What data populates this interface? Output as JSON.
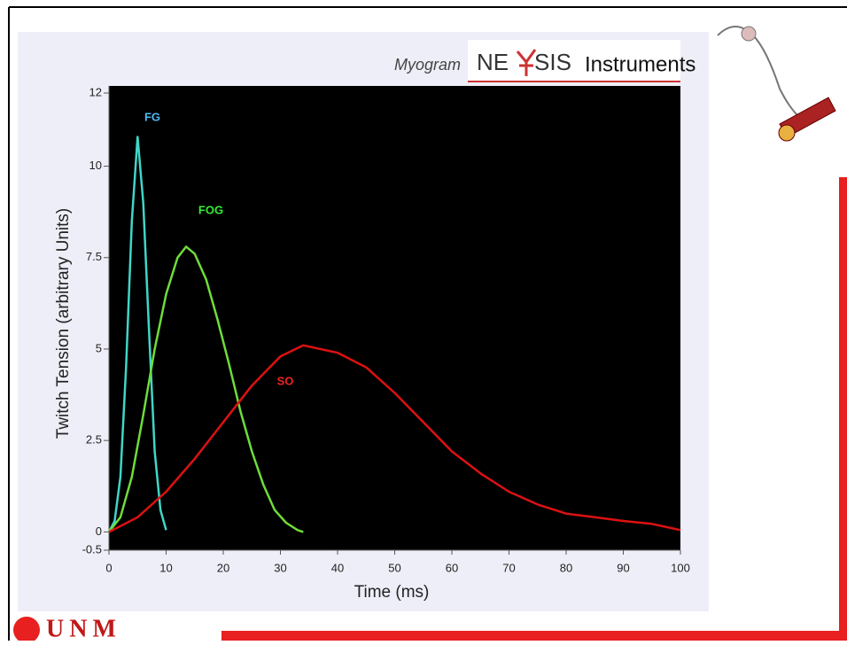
{
  "header": {
    "caption": "Myogram",
    "brand_left": "NE",
    "brand_right": "SIS",
    "brand_suffix": "Instruments"
  },
  "footer": {
    "logo": "UNM"
  },
  "chart_data": {
    "type": "line",
    "x_label": "Time (ms)",
    "y_label": "Twitch Tension (arbitrary Units)",
    "xlim": [
      0,
      100
    ],
    "xticks": [
      0,
      10,
      20,
      30,
      40,
      50,
      60,
      70,
      80,
      90,
      100
    ],
    "ylim": [
      -0.5,
      12
    ],
    "yticks": [
      -0.5,
      0,
      2.5,
      5,
      7.5,
      10,
      12
    ],
    "series": [
      {
        "name": "FG",
        "color": "#3fd6c8",
        "label_color": "#4fb8f0",
        "x": [
          0,
          1,
          2,
          3,
          4,
          5,
          6,
          7,
          8,
          9,
          10
        ],
        "values": [
          0,
          0.3,
          1.5,
          4.5,
          8.5,
          10.8,
          9.0,
          5.5,
          2.2,
          0.6,
          0.05
        ]
      },
      {
        "name": "FOG",
        "color": "#6fdc3a",
        "label_color": "#33ee33",
        "x": [
          0,
          2,
          4,
          6,
          8,
          10,
          12,
          13.5,
          15,
          17,
          19,
          21,
          23,
          25,
          27,
          29,
          31,
          33,
          34
        ],
        "values": [
          0,
          0.4,
          1.5,
          3.2,
          5.0,
          6.5,
          7.5,
          7.8,
          7.6,
          6.9,
          5.8,
          4.6,
          3.3,
          2.2,
          1.3,
          0.6,
          0.25,
          0.05,
          0
        ]
      },
      {
        "name": "SO",
        "color": "#dd1111",
        "label_color": "#ee2222",
        "x": [
          0,
          5,
          10,
          15,
          20,
          25,
          30,
          34,
          40,
          45,
          50,
          55,
          60,
          65,
          70,
          75,
          80,
          85,
          90,
          95,
          100
        ],
        "values": [
          0,
          0.4,
          1.1,
          2.0,
          3.0,
          4.0,
          4.8,
          5.1,
          4.9,
          4.5,
          3.8,
          3.0,
          2.2,
          1.6,
          1.1,
          0.75,
          0.5,
          0.4,
          0.3,
          0.22,
          0.05
        ]
      }
    ]
  }
}
